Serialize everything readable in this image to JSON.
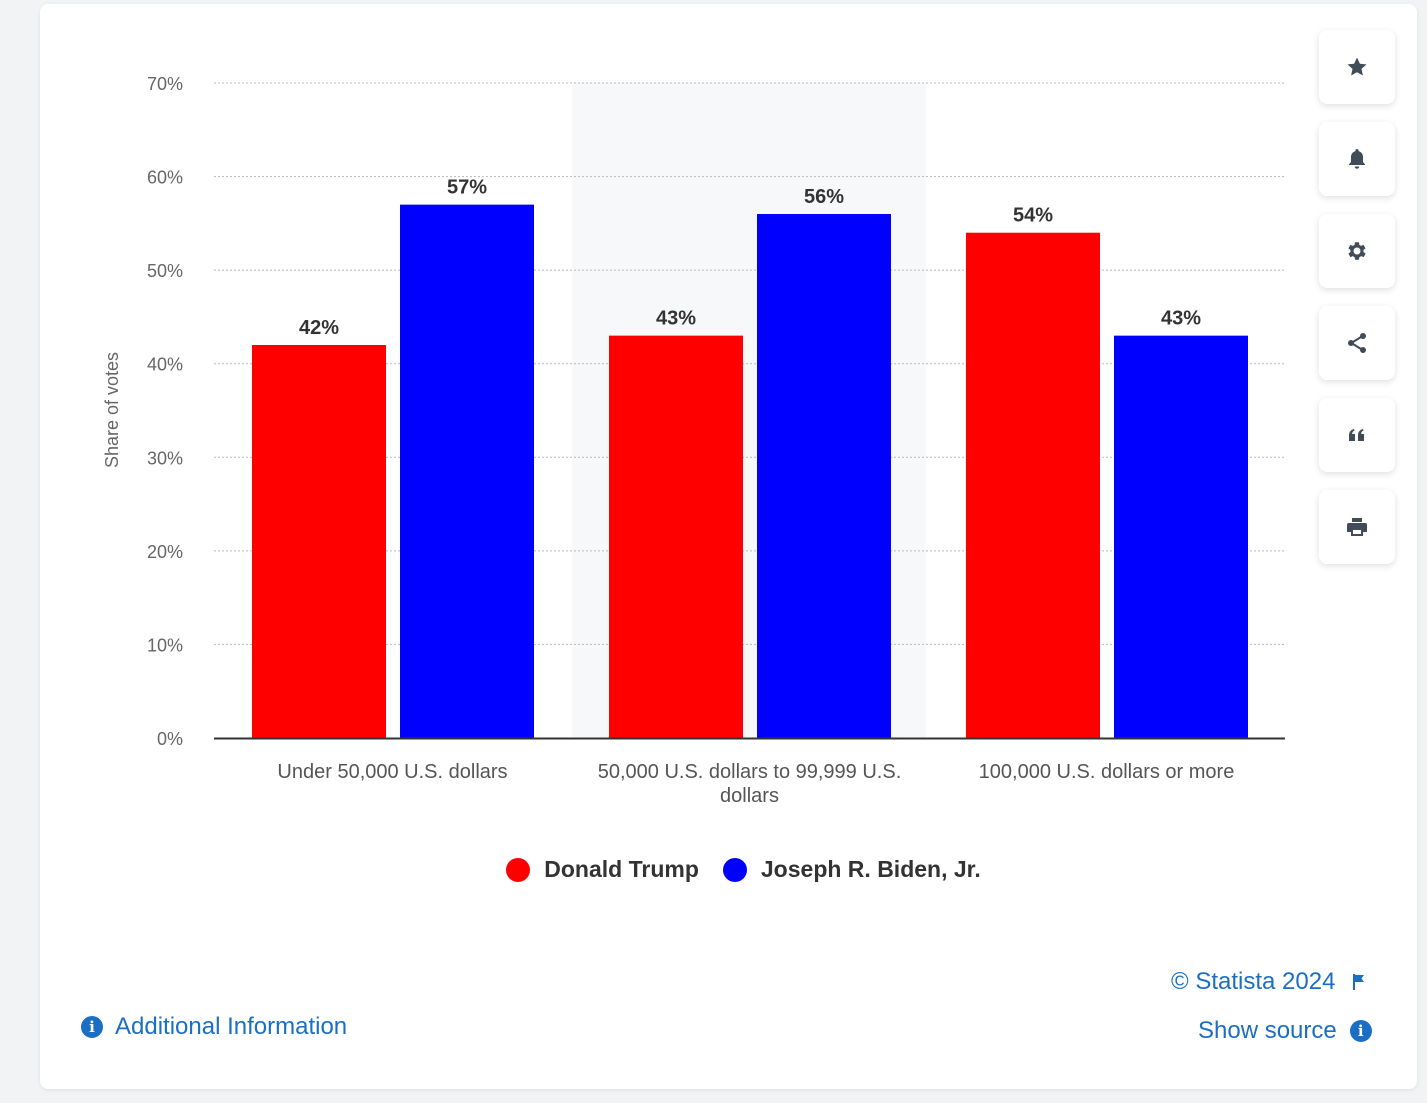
{
  "chart_data": {
    "type": "bar",
    "categories": [
      "Under 50,000 U.S. dollars",
      "50,000 U.S. dollars to 99,999 U.S. dollars",
      "100,000 U.S. dollars or more"
    ],
    "series": [
      {
        "name": "Donald Trump",
        "values": [
          42,
          43,
          54
        ],
        "color": "#ff0000"
      },
      {
        "name": "Joseph R. Biden, Jr.",
        "values": [
          57,
          56,
          43
        ],
        "color": "#0000ff"
      }
    ],
    "data_labels": [
      [
        "42%",
        "43%",
        "54%"
      ],
      [
        "57%",
        "56%",
        "43%"
      ]
    ],
    "ylabel": "Share of votes",
    "ylim": [
      0,
      70
    ],
    "yticks": [
      "0%",
      "10%",
      "20%",
      "30%",
      "40%",
      "50%",
      "60%",
      "70%"
    ],
    "grid": true,
    "legend_position": "bottom"
  },
  "toolbar": {
    "icons": [
      "star-icon",
      "bell-icon",
      "gear-icon",
      "share-icon",
      "quote-icon",
      "print-icon"
    ]
  },
  "footer": {
    "additional_info": "Additional Information",
    "copyright": "© Statista 2024",
    "show_source": "Show source",
    "info_glyph": "i"
  },
  "colors": {
    "link": "#1a6fc4",
    "trump": "#ff0000",
    "biden": "#0000ff"
  }
}
